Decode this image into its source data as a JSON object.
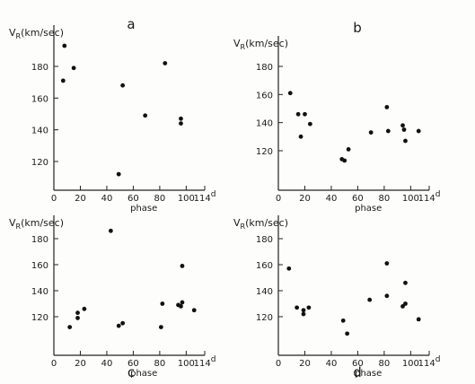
{
  "ylabel": "V",
  "ylabel_sub": "R",
  "ylabel_rest": "(km/sec)",
  "xlabel": "phase",
  "x_superscript": "d",
  "chart_data": [
    {
      "type": "scatter",
      "panel": "a",
      "xlabel": "phase",
      "ylabel": "VR(km/sec)",
      "xlim": [
        0,
        114
      ],
      "ylim": [
        105,
        195
      ],
      "xticks": [
        0,
        20,
        40,
        60,
        80,
        100,
        114
      ],
      "yticks": [
        120,
        140,
        160,
        180
      ],
      "points": [
        {
          "x": 8,
          "y": 193
        },
        {
          "x": 7,
          "y": 171
        },
        {
          "x": 15,
          "y": 179
        },
        {
          "x": 49,
          "y": 112
        },
        {
          "x": 52,
          "y": 168
        },
        {
          "x": 69,
          "y": 149
        },
        {
          "x": 84,
          "y": 182
        },
        {
          "x": 96,
          "y": 147
        },
        {
          "x": 96,
          "y": 144
        }
      ]
    },
    {
      "type": "scatter",
      "panel": "b",
      "xlabel": "phase",
      "ylabel": "VR(km/sec)",
      "xlim": [
        0,
        114
      ],
      "ylim": [
        105,
        195
      ],
      "xticks": [
        0,
        20,
        40,
        60,
        80,
        100,
        114
      ],
      "yticks": [
        120,
        140,
        160,
        180
      ],
      "points": [
        {
          "x": 9,
          "y": 161
        },
        {
          "x": 15,
          "y": 146
        },
        {
          "x": 20,
          "y": 146
        },
        {
          "x": 17,
          "y": 130
        },
        {
          "x": 24,
          "y": 139
        },
        {
          "x": 48,
          "y": 114
        },
        {
          "x": 50,
          "y": 113
        },
        {
          "x": 53,
          "y": 121
        },
        {
          "x": 70,
          "y": 133
        },
        {
          "x": 82,
          "y": 151
        },
        {
          "x": 83,
          "y": 134
        },
        {
          "x": 94,
          "y": 138
        },
        {
          "x": 95,
          "y": 135
        },
        {
          "x": 96,
          "y": 127
        },
        {
          "x": 106,
          "y": 134
        }
      ]
    },
    {
      "type": "scatter",
      "panel": "c",
      "xlabel": "phase",
      "ylabel": "VR(km/sec)",
      "xlim": [
        0,
        114
      ],
      "ylim": [
        105,
        195
      ],
      "xticks": [
        0,
        20,
        40,
        60,
        80,
        100,
        114
      ],
      "yticks": [
        120,
        140,
        160,
        180
      ],
      "points": [
        {
          "x": 12,
          "y": 112
        },
        {
          "x": 18,
          "y": 119
        },
        {
          "x": 18,
          "y": 123
        },
        {
          "x": 23,
          "y": 126
        },
        {
          "x": 43,
          "y": 186
        },
        {
          "x": 49,
          "y": 113
        },
        {
          "x": 52,
          "y": 115
        },
        {
          "x": 81,
          "y": 112
        },
        {
          "x": 82,
          "y": 130
        },
        {
          "x": 94,
          "y": 129
        },
        {
          "x": 96,
          "y": 128
        },
        {
          "x": 97,
          "y": 131
        },
        {
          "x": 97,
          "y": 159
        },
        {
          "x": 106,
          "y": 125
        }
      ]
    },
    {
      "type": "scatter",
      "panel": "d",
      "xlabel": "phase",
      "ylabel": "VR(km/sec)",
      "xlim": [
        0,
        114
      ],
      "ylim": [
        105,
        195
      ],
      "xticks": [
        0,
        20,
        40,
        60,
        80,
        100,
        114
      ],
      "yticks": [
        120,
        140,
        160,
        180
      ],
      "points": [
        {
          "x": 8,
          "y": 157
        },
        {
          "x": 14,
          "y": 127
        },
        {
          "x": 19,
          "y": 125
        },
        {
          "x": 19,
          "y": 122
        },
        {
          "x": 23,
          "y": 127
        },
        {
          "x": 49,
          "y": 117
        },
        {
          "x": 52,
          "y": 107
        },
        {
          "x": 69,
          "y": 133
        },
        {
          "x": 82,
          "y": 161
        },
        {
          "x": 82,
          "y": 136
        },
        {
          "x": 94,
          "y": 128
        },
        {
          "x": 96,
          "y": 130
        },
        {
          "x": 96,
          "y": 146
        },
        {
          "x": 106,
          "y": 118
        }
      ]
    }
  ]
}
